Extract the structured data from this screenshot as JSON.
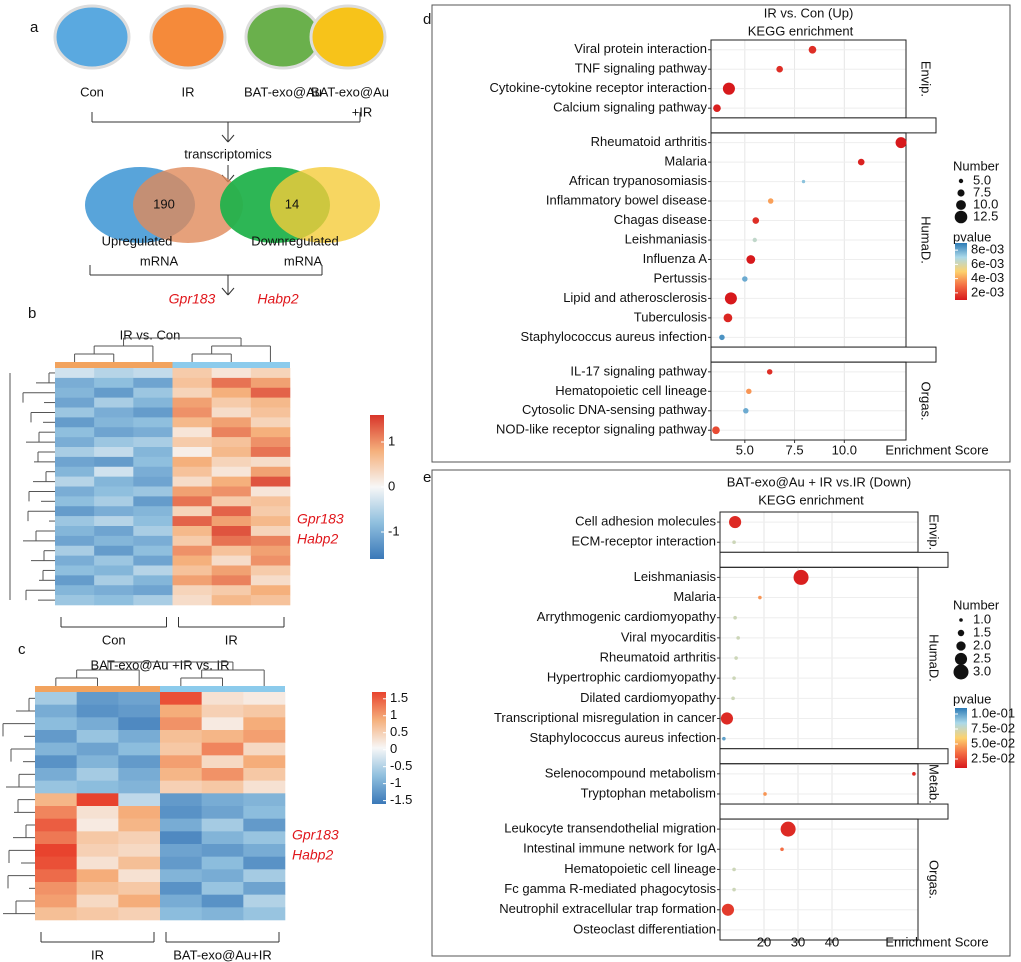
{
  "panel_a": {
    "label": "a",
    "groups": [
      [
        "Con"
      ],
      [
        "IR"
      ],
      [
        "BAT-exo@Au"
      ],
      [
        "BAT-exo@Au",
        "+IR"
      ]
    ],
    "group_colors": [
      "#5aa9e0",
      "#f58a3a",
      "#6ab04c",
      "#f7c31a"
    ],
    "step": "transcriptomics",
    "venn": [
      {
        "count": 190,
        "label": [
          "Upregulated",
          "mRNA"
        ],
        "colors": [
          "#4f9fd8",
          "#e08a5a"
        ]
      },
      {
        "count": 14,
        "label": [
          "Downregulated",
          "mRNA"
        ],
        "colors": [
          "#22b24c",
          "#f5cc3a"
        ]
      }
    ],
    "genes": [
      "Gpr183",
      "Habp2"
    ]
  },
  "panel_b": {
    "label": "b",
    "title": "IR vs. Con",
    "groups": [
      "Con",
      "IR"
    ],
    "genes": [
      "Gpr183",
      "Habp2"
    ],
    "colors": [
      "#3a78b8",
      "#8fbfde",
      "#f7f7f7",
      "#f5b07c",
      "#d8352a"
    ],
    "clim": [
      -1.6,
      1.6
    ],
    "colorbar_ticks": [
      1,
      0,
      -1
    ],
    "group_colors": [
      "#f2a35e",
      "#8ccbec"
    ],
    "matrix": [
      [
        -0.3,
        -0.5,
        -0.4,
        0.5,
        0.2,
        0.4
      ],
      [
        -1.0,
        -0.8,
        -1.1,
        0.6,
        1.2,
        0.9
      ],
      [
        -0.9,
        -1.2,
        -0.7,
        0.4,
        0.8,
        1.3
      ],
      [
        -1.1,
        -0.6,
        -0.9,
        0.9,
        0.5,
        0.7
      ],
      [
        -0.7,
        -1.0,
        -1.2,
        1.0,
        0.3,
        0.6
      ],
      [
        -1.2,
        -0.9,
        -0.8,
        0.7,
        0.9,
        0.4
      ],
      [
        -0.8,
        -1.1,
        -1.0,
        0.2,
        1.1,
        0.8
      ],
      [
        -1.0,
        -0.7,
        -0.6,
        0.5,
        0.6,
        1.0
      ],
      [
        -0.6,
        -0.4,
        -0.9,
        0.1,
        0.7,
        1.2
      ],
      [
        -1.1,
        -1.2,
        -0.8,
        0.8,
        0.4,
        0.3
      ],
      [
        -0.9,
        -0.3,
        -1.0,
        0.6,
        0.2,
        0.9
      ],
      [
        -0.5,
        -0.9,
        -1.1,
        0.3,
        0.8,
        1.4
      ],
      [
        -1.0,
        -0.8,
        -0.7,
        0.9,
        1.0,
        0.2
      ],
      [
        -0.8,
        -0.6,
        -1.2,
        1.2,
        0.5,
        0.6
      ],
      [
        -1.2,
        -1.0,
        -0.9,
        0.4,
        1.3,
        0.5
      ],
      [
        -0.7,
        -0.5,
        -0.8,
        1.3,
        0.9,
        0.7
      ],
      [
        -0.9,
        -1.1,
        -0.6,
        0.7,
        1.4,
        0.4
      ],
      [
        -1.1,
        -0.9,
        -1.0,
        0.5,
        1.2,
        1.1
      ],
      [
        -0.6,
        -1.2,
        -0.8,
        1.0,
        0.6,
        0.9
      ],
      [
        -1.0,
        -0.7,
        -1.1,
        0.8,
        0.3,
        1.0
      ],
      [
        -0.8,
        -0.9,
        -0.5,
        0.6,
        0.9,
        0.5
      ],
      [
        -1.2,
        -0.6,
        -0.9,
        0.9,
        1.1,
        0.3
      ],
      [
        -0.9,
        -1.0,
        -1.1,
        0.4,
        0.5,
        0.8
      ],
      [
        -0.7,
        -0.8,
        -0.6,
        0.3,
        0.7,
        0.6
      ]
    ]
  },
  "panel_c": {
    "label": "c",
    "title": "BAT-exo@Au +IR vs. IR",
    "groups": [
      "IR",
      "BAT-exo@Au+IR"
    ],
    "genes": [
      "Gpr183",
      "Habp2"
    ],
    "colors": [
      "#3a78b8",
      "#8fbfde",
      "#f7f7f7",
      "#f5b07c",
      "#e8432e"
    ],
    "clim": [
      -1.6,
      1.7
    ],
    "colorbar_ticks": [
      1.5,
      1,
      0.5,
      0,
      -0.5,
      -1,
      -1.5
    ],
    "group_colors": [
      "#f2a35e",
      "#8ccbec"
    ],
    "matrix": [
      [
        -0.6,
        -1.2,
        -1.1,
        1.6,
        0.3,
        0.2
      ],
      [
        -1.0,
        -1.3,
        -1.2,
        0.9,
        0.5,
        0.6
      ],
      [
        -0.8,
        -1.0,
        -1.4,
        1.1,
        0.2,
        0.9
      ],
      [
        -1.2,
        -0.7,
        -1.0,
        0.7,
        0.8,
        1.0
      ],
      [
        -0.9,
        -1.1,
        -0.8,
        0.6,
        1.2,
        0.4
      ],
      [
        -1.3,
        -0.9,
        -1.2,
        1.0,
        0.4,
        0.9
      ],
      [
        -1.0,
        -0.6,
        -1.0,
        0.8,
        1.1,
        0.6
      ],
      [
        -0.7,
        -0.8,
        -0.9,
        0.5,
        0.6,
        0.3
      ],
      [
        0.8,
        1.7,
        -0.4,
        -1.2,
        -1.0,
        -0.9
      ],
      [
        1.2,
        0.3,
        0.9,
        -1.3,
        -1.1,
        -0.8
      ],
      [
        1.5,
        0.2,
        0.8,
        -1.0,
        -0.6,
        -1.2
      ],
      [
        1.3,
        0.6,
        0.5,
        -1.4,
        -0.9,
        -0.7
      ],
      [
        1.7,
        0.5,
        0.4,
        -1.1,
        -1.2,
        -1.0
      ],
      [
        1.6,
        0.3,
        0.7,
        -1.2,
        -0.8,
        -1.3
      ],
      [
        1.4,
        0.9,
        0.3,
        -0.9,
        -1.0,
        -0.6
      ],
      [
        1.1,
        0.7,
        0.6,
        -1.3,
        -0.7,
        -1.1
      ],
      [
        1.0,
        0.4,
        0.9,
        -1.0,
        -1.3,
        -0.5
      ],
      [
        0.7,
        0.6,
        0.5,
        -0.8,
        -0.9,
        -0.7
      ]
    ]
  },
  "chart_data": [
    {
      "type": "scatter",
      "panel": "d",
      "title": "IR vs. Con (Up)",
      "subtitle": "KEGG enrichment",
      "xlabel": "Enrichment Score",
      "xlim": [
        3.3,
        13.1
      ],
      "xticks": [
        {
          "value": 5,
          "label": "5.0"
        },
        7.5,
        {
          "value": 10,
          "label": "10.0"
        }
      ],
      "grid": true,
      "size_legend_title": "Number",
      "size_ticks": [
        {
          "value": 5,
          "label": "5.0"
        },
        7.5,
        {
          "value": 10,
          "label": "10.0"
        },
        12.5
      ],
      "color_legend_title": "pvalue",
      "clim": [
        0.001,
        0.009
      ],
      "color_ticks": [
        {
          "value": 0.008,
          "label": "8e-03"
        },
        {
          "value": 0.006,
          "label": "6e-03"
        },
        {
          "value": 0.004,
          "label": "4e-03"
        },
        {
          "value": 0.002,
          "label": "2e-03"
        }
      ],
      "colors": [
        "#d7191c",
        "#f46d43",
        "#fdd26e",
        "#abd9e9",
        "#2c7bb6"
      ],
      "facets": [
        {
          "name": "Envip.",
          "categories": [
            "Viral protein interaction",
            "TNF signaling pathway",
            "Cytokine-cytokine receptor interaction",
            "Calcium signaling pathway"
          ],
          "x": [
            8.4,
            6.75,
            4.2,
            3.6
          ],
          "size": [
            8,
            7,
            12,
            8
          ],
          "pvalue": [
            0.0015,
            0.0015,
            0.001,
            0.0012
          ]
        },
        {
          "name": "HumaD.",
          "categories": [
            "Rheumatoid arthritis",
            "Malaria",
            "African trypanosomiasis",
            "Inflammatory bowel disease",
            "Chagas disease",
            "Leishmaniasis",
            "Influenza A",
            "Pertussis",
            "Lipid and atherosclerosis",
            "Tuberculosis",
            "Staphylococcus aureus infection"
          ],
          "x": [
            12.85,
            10.85,
            7.95,
            6.3,
            5.55,
            5.5,
            5.3,
            5.0,
            4.3,
            4.15,
            3.85
          ],
          "size": [
            11,
            7,
            4,
            6,
            7,
            5,
            9,
            6,
            12,
            9,
            6
          ],
          "pvalue": [
            0.001,
            0.0012,
            0.0075,
            0.004,
            0.0015,
            0.0065,
            0.001,
            0.008,
            0.001,
            0.0013,
            0.0085
          ]
        },
        {
          "name": "Orgas.",
          "categories": [
            "IL-17 signaling pathway",
            "Hematopoietic cell lineage",
            "Cytosolic DNA-sensing pathway",
            "NOD-like receptor signaling pathway"
          ],
          "x": [
            6.25,
            5.2,
            5.05,
            3.55
          ],
          "size": [
            6,
            6,
            6,
            8
          ],
          "pvalue": [
            0.0015,
            0.0038,
            0.008,
            0.0022
          ]
        }
      ]
    },
    {
      "type": "scatter",
      "panel": "e",
      "title": "BAT-exo@Au + IR vs.IR (Down)",
      "subtitle": "KEGG enrichment",
      "xlabel": "Enrichment Score",
      "xlim": [
        7.06,
        65.3
      ],
      "xticks": [
        20,
        30,
        40
      ],
      "grid": true,
      "size_legend_title": "Number",
      "size_ticks": [
        {
          "value": 1,
          "label": "1.0"
        },
        1.5,
        {
          "value": 2,
          "label": "2.0"
        },
        2.5,
        {
          "value": 3,
          "label": "3.0"
        }
      ],
      "color_legend_title": "pvalue",
      "clim": [
        0.01,
        0.11
      ],
      "color_ticks": [
        {
          "value": 0.1,
          "label": "1.0e-01"
        },
        {
          "value": 0.075,
          "label": "7.5e-02"
        },
        {
          "value": 0.05,
          "label": "5.0e-02"
        },
        {
          "value": 0.025,
          "label": "2.5e-02"
        }
      ],
      "colors": [
        "#d7191c",
        "#f46d43",
        "#fdd26e",
        "#abd9e9",
        "#2c7bb6"
      ],
      "facets": [
        {
          "name": "Envip.",
          "categories": [
            "Cell adhesion molecules",
            "ECM-receptor interaction"
          ],
          "x": [
            11.5,
            11.2
          ],
          "size": [
            2.5,
            1
          ],
          "pvalue": [
            0.015,
            0.075
          ]
        },
        {
          "name": "HumaD.",
          "categories": [
            "Leishmaniasis",
            "Malaria",
            "Arrythmogenic cardiomyopathy",
            "Viral myocarditis",
            "Rheumatoid arthritis",
            "Hypertrophic cardiomyopathy",
            "Dilated cardiomyopathy",
            "Transcriptional misregulation in cancer",
            "Staphylococcus aureus infection"
          ],
          "x": [
            30.9,
            18.8,
            11.5,
            12.4,
            11.8,
            11.2,
            10.9,
            9.1,
            8.2
          ],
          "size": [
            3,
            1,
            1,
            1,
            1,
            1,
            1,
            2.5,
            1
          ],
          "pvalue": [
            0.012,
            0.045,
            0.075,
            0.075,
            0.075,
            0.075,
            0.075,
            0.015,
            0.1
          ]
        },
        {
          "name": "Metab.",
          "categories": [
            "Selenocompound metabolism",
            "Tryptophan metabolism"
          ],
          "x": [
            64.1,
            20.3
          ],
          "size": [
            1,
            1
          ],
          "pvalue": [
            0.015,
            0.045
          ]
        },
        {
          "name": "Orgas.",
          "categories": [
            "Leukocyte transendothelial migration",
            "Intestinal immune network for IgA",
            "Hematopoietic cell lineage",
            "Fc gamma R-mediated phagocytosis",
            "Neutrophil extracellular trap formation",
            "Osteoclast differentiation"
          ],
          "x": [
            27.1,
            25.3,
            11.2,
            11.2,
            9.4,
            null
          ],
          "size": [
            3,
            1,
            1,
            1,
            2.5,
            null
          ],
          "pvalue": [
            0.015,
            0.035,
            0.075,
            0.075,
            0.02,
            null
          ]
        }
      ]
    }
  ]
}
